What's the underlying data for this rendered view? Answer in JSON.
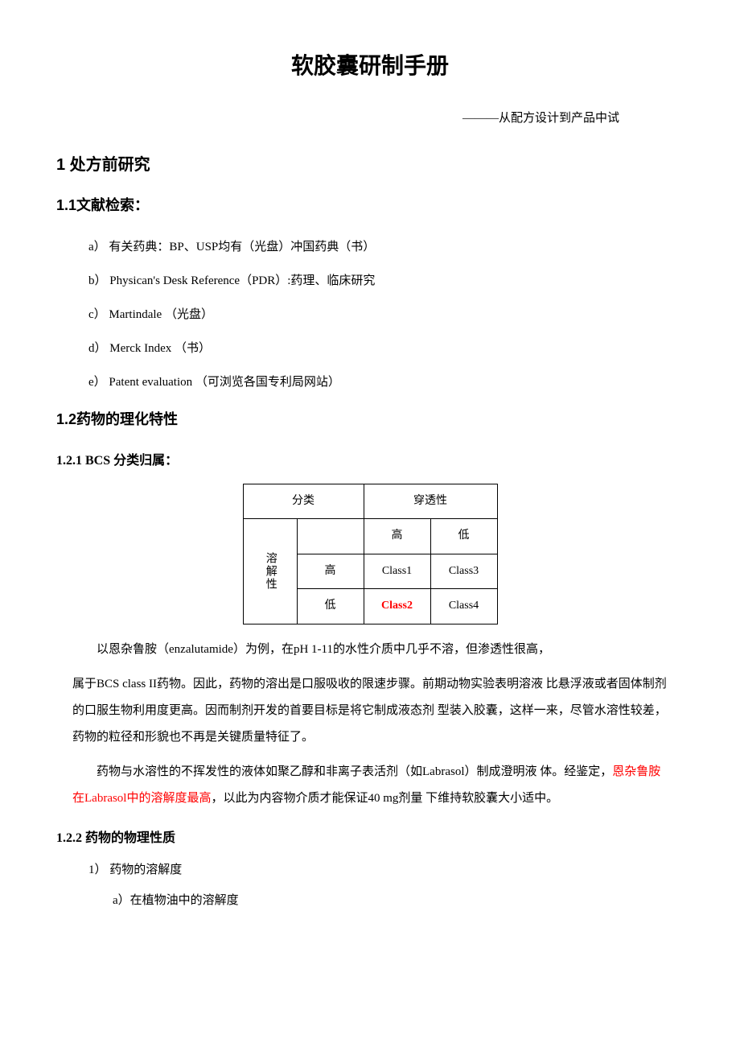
{
  "title": "软胶囊研制手册",
  "subtitle": "———从配方设计到产品中试",
  "section1": {
    "heading": "1 处方前研究",
    "sub1": {
      "heading": "1.1文献检索：",
      "items": [
        "a）  有关药典：BP、USP均有（光盘）冲国药典（书）",
        "b）  Physican's Desk Reference（PDR）:药理、临床研究",
        "c）  Martindale （光盘）",
        "d）  Merck Index （书）",
        "e）  Patent evaluation （可浏览各国专利局网站）"
      ]
    },
    "sub2": {
      "heading": "1.2药物的理化特性",
      "s121": {
        "heading": "1.2.1 BCS 分类归属：",
        "table": {
          "header_category": "分类",
          "header_perm": "穿透性",
          "row_label": "溶解性",
          "col_high": "高",
          "col_low": "低",
          "r_high": "高",
          "r_low": "低",
          "c1": "Class1",
          "c2": "Class2",
          "c3": "Class3",
          "c4": "Class4",
          "c2_color": "#ff0000"
        },
        "para1_a": "以恩杂鲁胺（enzalutamide）为例，在pH 1-11的水性介质中几乎不溶，但渗透性很高，",
        "para1_b": "属于BCS class II药物。因此，药物的溶出是口服吸收的限速步骤。前期动物实验表明溶液 比悬浮液或者固体制剂的口服生物利用度更高。因而制剂开发的首要目标是将它制成液态剂 型装入胶囊，这样一来，尽管水溶性较差，药物的粒径和形貌也不再是关键质量特征了。",
        "para2_a": "药物与水溶性的不挥发性的液体如聚乙醇和非离子表活剂（如Labrasol）制成澄明液 体。经鉴定，",
        "para2_red": "恩杂鲁胺在Labrasol中的溶解度最高",
        "para2_b": "，以此为内容物介质才能保证40 mg剂量 下维持软胶囊大小适中。"
      },
      "s122": {
        "heading": "1.2.2 药物的物理性质",
        "item1": "1） 药物的溶解度",
        "item1a": "a）在植物油中的溶解度"
      }
    }
  },
  "colors": {
    "text": "#000000",
    "background": "#ffffff",
    "highlight": "#ff0000"
  },
  "fonts": {
    "body": "SimSun",
    "heading": "SimHei",
    "title_size_pt": 21,
    "h1_size_pt": 15,
    "body_size_pt": 11
  }
}
